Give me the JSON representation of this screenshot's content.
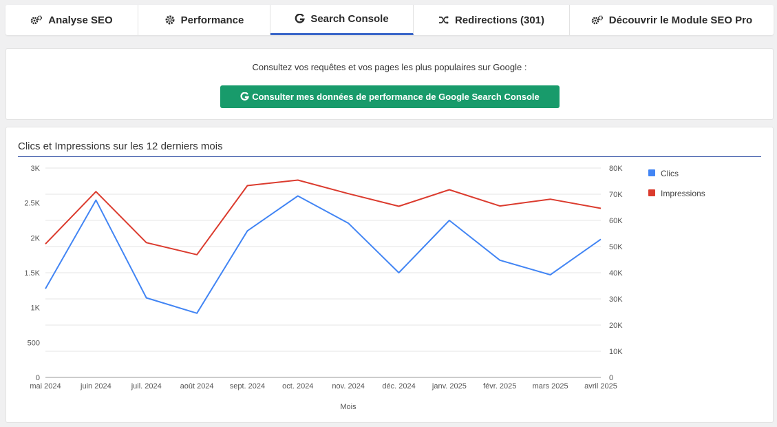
{
  "tabs": [
    {
      "label": "Analyse SEO",
      "icon": "gears-icon",
      "active": false
    },
    {
      "label": "Performance",
      "icon": "gear-icon",
      "active": false
    },
    {
      "label": "Search Console",
      "icon": "google-g-icon",
      "active": true
    },
    {
      "label": "Redirections (301)",
      "icon": "shuffle-icon",
      "active": false
    },
    {
      "label": "Découvrir le Module SEO Pro",
      "icon": "gears-icon",
      "active": false
    }
  ],
  "search_console": {
    "intro": "Consultez vos requêtes et vos pages les plus populaires sur Google :",
    "button_label": "Consulter mes données de performance de Google Search Console",
    "button_color": "#189b6b"
  },
  "chart_data": {
    "type": "line",
    "title": "Clics et Impressions sur les 12 derniers mois",
    "xlabel": "Mois",
    "categories": [
      "mai 2024",
      "juin 2024",
      "juil. 2024",
      "août 2024",
      "sept. 2024",
      "oct. 2024",
      "nov. 2024",
      "déc. 2024",
      "janv. 2025",
      "févr. 2025",
      "mars 2025",
      "avril 2025"
    ],
    "y_left": {
      "ylim": [
        0,
        3000
      ],
      "ticks": [
        0,
        500,
        1000,
        1500,
        2000,
        2500,
        3000
      ],
      "tick_labels": [
        "0",
        "500",
        "1K",
        "1.5K",
        "2K",
        "2.5K",
        "3K"
      ]
    },
    "y_right": {
      "ylim": [
        0,
        80000
      ],
      "ticks": [
        0,
        10000,
        20000,
        30000,
        40000,
        50000,
        60000,
        70000,
        80000
      ],
      "tick_labels": [
        "0",
        "10K",
        "20K",
        "30K",
        "40K",
        "50K",
        "60K",
        "70K",
        "80K"
      ]
    },
    "series": [
      {
        "name": "Clics",
        "axis": "left",
        "color": "#4285f4",
        "values": [
          1270,
          2540,
          1140,
          920,
          2100,
          2600,
          2210,
          1500,
          2250,
          1680,
          1470,
          1980
        ]
      },
      {
        "name": "Impressions",
        "axis": "right",
        "color": "#db3b2e",
        "values": [
          51000,
          71000,
          51500,
          46900,
          73300,
          75400,
          70200,
          65400,
          71700,
          65500,
          68100,
          64600
        ]
      }
    ],
    "legend_position": "right",
    "grid": true
  }
}
